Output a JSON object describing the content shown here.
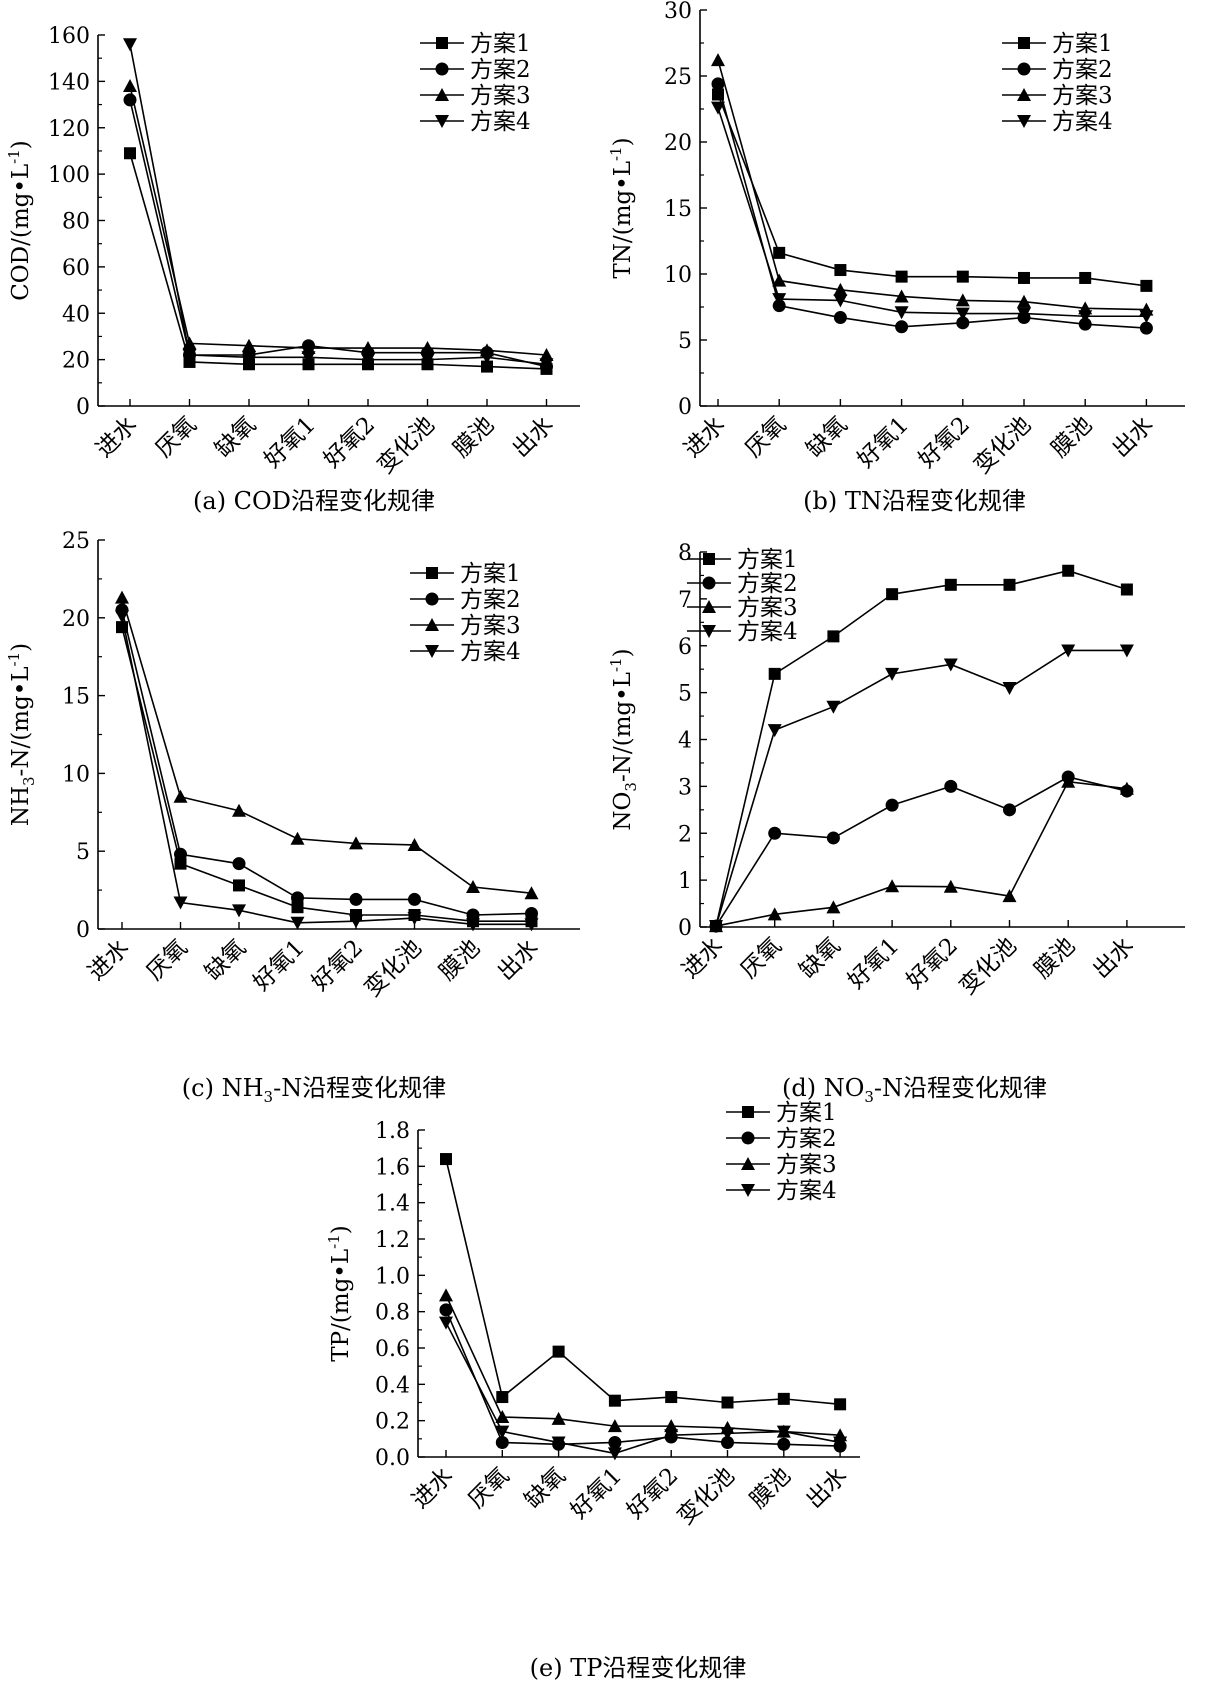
{
  "legend_labels": [
    "方案1",
    "方案2",
    "方案3",
    "方案4"
  ],
  "chart_data": [
    {
      "id": "a",
      "type": "line",
      "caption": "(a) COD沿程变化规律",
      "ylabel": "COD/(mg•L-1)",
      "ylabel_main": "COD/(mg•L",
      "ylabel_sup": "-1",
      "ylabel_tail": ")",
      "ylim": [
        0,
        160
      ],
      "yticks": [
        "0",
        "20",
        "40",
        "60",
        "80",
        "100",
        "120",
        "140",
        "160"
      ],
      "legend_position": "top-right",
      "categories": [
        "进水",
        "厌氧",
        "缺氧",
        "好氧1",
        "好氧2",
        "变化池",
        "膜池",
        "出水"
      ],
      "series": [
        {
          "name": "方案1",
          "marker": "square",
          "values": [
            109,
            19,
            18,
            18,
            18,
            18,
            17,
            16
          ]
        },
        {
          "name": "方案2",
          "marker": "circle",
          "values": [
            132,
            22,
            22,
            26,
            23,
            23,
            23,
            17
          ]
        },
        {
          "name": "方案3",
          "marker": "triangle-up",
          "values": [
            138,
            27,
            26,
            25,
            25,
            25,
            24,
            22
          ]
        },
        {
          "name": "方案4",
          "marker": "triangle-down",
          "values": [
            156,
            22,
            21,
            21,
            20,
            20,
            21,
            18
          ]
        }
      ]
    },
    {
      "id": "b",
      "type": "line",
      "caption": "(b) TN沿程变化规律",
      "ylabel": "TN/(mg•L-1)",
      "ylabel_main": "TN/(mg•L",
      "ylabel_sup": "-1",
      "ylabel_tail": ")",
      "ylim": [
        0,
        30
      ],
      "yticks": [
        "0",
        "5",
        "10",
        "15",
        "20",
        "25",
        "30"
      ],
      "legend_position": "top-right",
      "categories": [
        "进水",
        "厌氧",
        "缺氧",
        "好氧1",
        "好氧2",
        "变化池",
        "膜池",
        "出水"
      ],
      "series": [
        {
          "name": "方案1",
          "marker": "square",
          "values": [
            23.6,
            11.6,
            10.3,
            9.8,
            9.8,
            9.7,
            9.7,
            9.1
          ]
        },
        {
          "name": "方案2",
          "marker": "circle",
          "values": [
            24.4,
            7.6,
            6.7,
            6.0,
            6.3,
            6.7,
            6.2,
            5.9
          ]
        },
        {
          "name": "方案3",
          "marker": "triangle-up",
          "values": [
            26.2,
            9.5,
            8.8,
            8.3,
            8.0,
            7.9,
            7.4,
            7.3
          ]
        },
        {
          "name": "方案4",
          "marker": "triangle-down",
          "values": [
            22.6,
            8.1,
            8.0,
            7.1,
            7.0,
            7.0,
            6.8,
            6.8
          ]
        }
      ]
    },
    {
      "id": "c",
      "type": "line",
      "caption_main": "(c) NH",
      "caption_sub": "3",
      "caption_tail": "-N沿程变化规律",
      "ylabel": "NH3-N/(mg•L-1)",
      "ylabel_main": "NH",
      "ylabel_sub": "3",
      "ylabel_mid": "-N/(mg•L",
      "ylabel_sup": "-1",
      "ylabel_tail": ")",
      "ylim": [
        0,
        25
      ],
      "yticks": [
        "0",
        "5",
        "10",
        "15",
        "20",
        "25"
      ],
      "legend_position": "top-right",
      "categories": [
        "进水",
        "厌氧",
        "缺氧",
        "好氧1",
        "好氧2",
        "变化池",
        "膜池",
        "出水"
      ],
      "series": [
        {
          "name": "方案1",
          "marker": "square",
          "values": [
            19.4,
            4.2,
            2.8,
            1.4,
            0.9,
            0.9,
            0.5,
            0.5
          ]
        },
        {
          "name": "方案2",
          "marker": "circle",
          "values": [
            20.5,
            4.8,
            4.2,
            2.0,
            1.9,
            1.9,
            0.9,
            1.0
          ]
        },
        {
          "name": "方案3",
          "marker": "triangle-up",
          "values": [
            21.3,
            8.5,
            7.6,
            5.8,
            5.5,
            5.4,
            2.7,
            2.3
          ]
        },
        {
          "name": "方案4",
          "marker": "triangle-down",
          "values": [
            20.1,
            1.7,
            1.2,
            0.4,
            0.5,
            0.7,
            0.3,
            0.3
          ]
        }
      ]
    },
    {
      "id": "d",
      "type": "line",
      "caption_main": "(d) NO",
      "caption_sub": "3",
      "caption_tail": "-N沿程变化规律",
      "ylabel": "NO3-N/(mg•L-1)",
      "ylabel_main": "NO",
      "ylabel_sub": "3",
      "ylabel_mid": "-N/(mg•L",
      "ylabel_sup": "-1",
      "ylabel_tail": ")",
      "ylim": [
        0,
        8
      ],
      "yticks": [
        "0",
        "1",
        "2",
        "3",
        "4",
        "5",
        "6",
        "7",
        "8"
      ],
      "legend_position": "top-left",
      "categories": [
        "进水",
        "厌氧",
        "缺氧",
        "好氧1",
        "好氧2",
        "变化池",
        "膜池",
        "出水"
      ],
      "series": [
        {
          "name": "方案1",
          "marker": "square",
          "values": [
            0.02,
            5.4,
            6.2,
            7.1,
            7.3,
            7.3,
            7.6,
            7.2
          ]
        },
        {
          "name": "方案2",
          "marker": "circle",
          "values": [
            0.02,
            2.0,
            1.9,
            2.6,
            3.0,
            2.5,
            3.2,
            2.9
          ]
        },
        {
          "name": "方案3",
          "marker": "triangle-up",
          "values": [
            0.02,
            0.27,
            0.42,
            0.87,
            0.86,
            0.66,
            3.1,
            2.95
          ]
        },
        {
          "name": "方案4",
          "marker": "triangle-down",
          "values": [
            0.02,
            4.2,
            4.7,
            5.4,
            5.6,
            5.1,
            5.9,
            5.9
          ]
        }
      ]
    },
    {
      "id": "e",
      "type": "line",
      "caption": "(e) TP沿程变化规律",
      "ylabel": "TP/(mg•L-1)",
      "ylabel_main": "TP/(mg•L",
      "ylabel_sup": "-1",
      "ylabel_tail": ")",
      "ylim": [
        0,
        1.8
      ],
      "yticks": [
        "0.0",
        "0.2",
        "0.4",
        "0.6",
        "0.8",
        "1.0",
        "1.2",
        "1.4",
        "1.6",
        "1.8"
      ],
      "legend_position": "top-right",
      "categories": [
        "进水",
        "厌氧",
        "缺氧",
        "好氧1",
        "好氧2",
        "变化池",
        "膜池",
        "出水"
      ],
      "series": [
        {
          "name": "方案1",
          "marker": "square",
          "values": [
            1.64,
            0.33,
            0.58,
            0.31,
            0.33,
            0.3,
            0.32,
            0.29
          ]
        },
        {
          "name": "方案2",
          "marker": "circle",
          "values": [
            0.81,
            0.08,
            0.07,
            0.08,
            0.11,
            0.08,
            0.07,
            0.06
          ]
        },
        {
          "name": "方案3",
          "marker": "triangle-up",
          "values": [
            0.89,
            0.22,
            0.21,
            0.17,
            0.17,
            0.16,
            0.14,
            0.12
          ]
        },
        {
          "name": "方案4",
          "marker": "triangle-down",
          "values": [
            0.74,
            0.14,
            0.08,
            0.02,
            0.12,
            0.13,
            0.14,
            0.08
          ]
        }
      ]
    }
  ]
}
